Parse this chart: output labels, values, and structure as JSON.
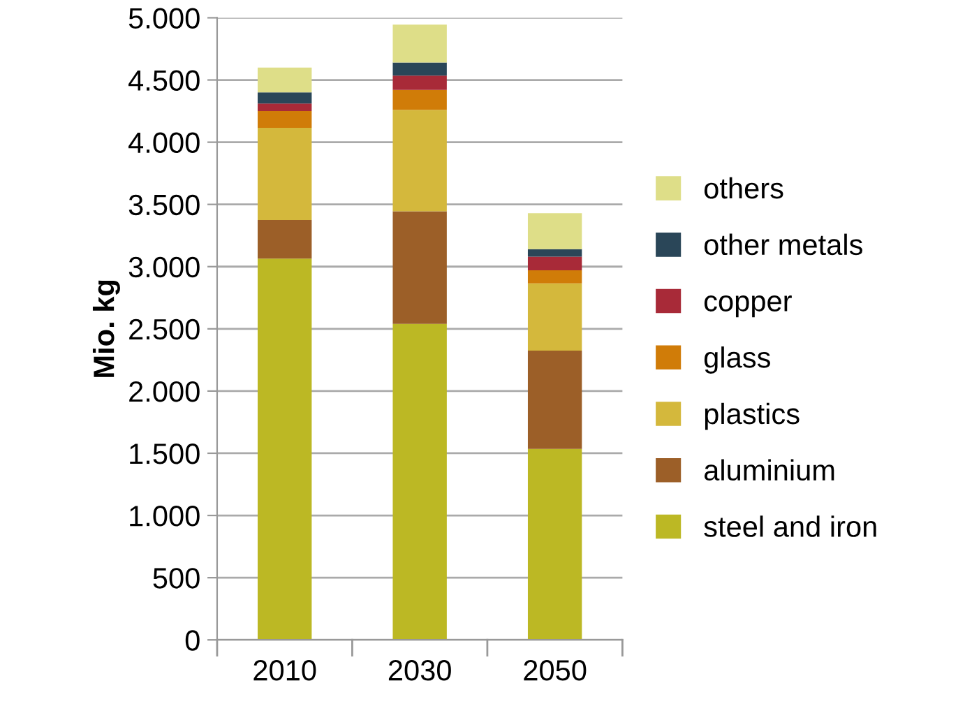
{
  "chart_data": {
    "type": "bar",
    "stacked": true,
    "ylabel": "Mio. kg",
    "categories": [
      "2010",
      "2030",
      "2050"
    ],
    "series": [
      {
        "name": "steel and iron",
        "color": "#bcb824",
        "values": [
          3065,
          2540,
          1535
        ]
      },
      {
        "name": "aluminium",
        "color": "#9c5f28",
        "values": [
          310,
          905,
          790
        ]
      },
      {
        "name": "plastics",
        "color": "#d4b83c",
        "values": [
          740,
          815,
          540
        ]
      },
      {
        "name": "glass",
        "color": "#d07c08",
        "values": [
          135,
          160,
          105
        ]
      },
      {
        "name": "copper",
        "color": "#a82a38",
        "values": [
          60,
          115,
          110
        ]
      },
      {
        "name": "other metals",
        "color": "#2a4658",
        "values": [
          90,
          105,
          60
        ]
      },
      {
        "name": "others",
        "color": "#dede88",
        "values": [
          200,
          305,
          290
        ]
      }
    ],
    "ylim": [
      0,
      5000
    ],
    "yticks": [
      0,
      500,
      {
        "value": 1000,
        "label": "1.000"
      },
      {
        "value": 1500,
        "label": "1.500"
      },
      {
        "value": 2000,
        "label": "2.000"
      },
      {
        "value": 2500,
        "label": "2.500"
      },
      {
        "value": 3000,
        "label": "3.000"
      },
      {
        "value": 3500,
        "label": "3.500"
      },
      {
        "value": 4000,
        "label": "4.000"
      },
      {
        "value": 4500,
        "label": "4.500"
      },
      {
        "value": 5000,
        "label": "5.000"
      }
    ],
    "grid": "y",
    "legend": "right"
  }
}
